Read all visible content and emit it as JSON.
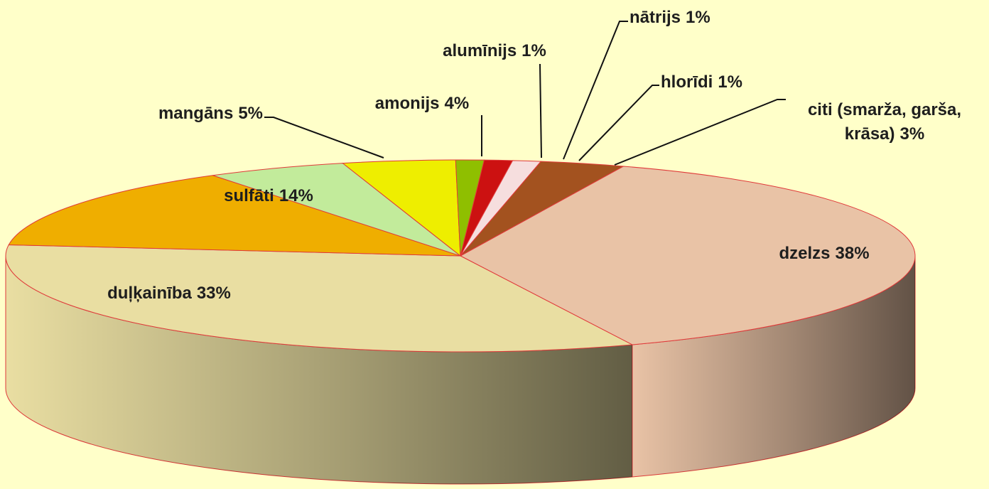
{
  "chart_data": {
    "type": "pie3d",
    "categories": [
      "dzelzs",
      "duļķainība",
      "sulfāti",
      "mangāns",
      "amonijs",
      "alumīnijs",
      "nātrijs",
      "hlorīdi",
      "citi (smarža, garša, krāsa)"
    ],
    "values": [
      38,
      33,
      14,
      5,
      4,
      1,
      1,
      1,
      3
    ],
    "value_labels": [
      "38%",
      "33%",
      "14%",
      "5%",
      "4%",
      "1%",
      "1%",
      "1%",
      "3%"
    ],
    "colors": [
      "#e9c3a6",
      "#e9dea2",
      "#efae00",
      "#c2eb9b",
      "#eeee00",
      "#8fbf00",
      "#cc1111",
      "#f6dede",
      "#a3521f"
    ]
  }
}
